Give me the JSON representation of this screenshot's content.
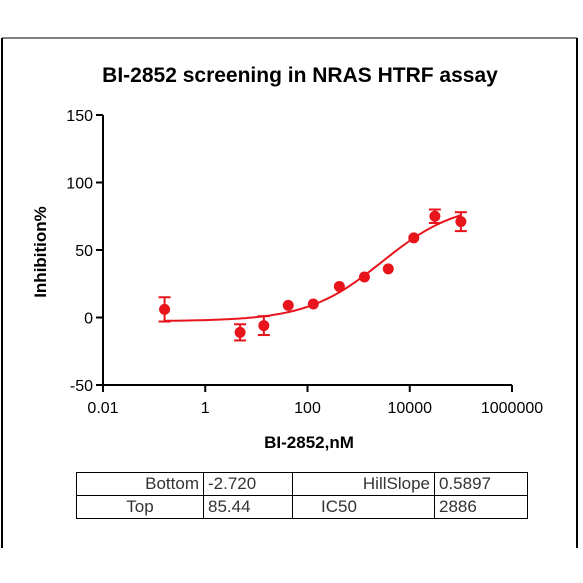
{
  "chart_data": {
    "type": "scatter",
    "title": "BI-2852 screening in NRAS HTRF assay",
    "xlabel": "BI-2852,nM",
    "ylabel": "Inhibition%",
    "xscale": "log",
    "xlim": [
      0.01,
      1000000
    ],
    "ylim": [
      -50,
      150
    ],
    "xticks": [
      0.01,
      1,
      100,
      10000,
      1000000
    ],
    "xtick_labels": [
      "0.01",
      "1",
      "100",
      "10000",
      "1000000"
    ],
    "yticks": [
      -50,
      0,
      50,
      100,
      150
    ],
    "ytick_labels": [
      "-50",
      "0",
      "50",
      "100",
      "150"
    ],
    "grid": false,
    "marker_color": "#e8141b",
    "curve_color": "#e8141b",
    "points": [
      {
        "x": 0.16,
        "y": 6,
        "err": 9
      },
      {
        "x": 4.8,
        "y": -11,
        "err": 6
      },
      {
        "x": 14,
        "y": -6,
        "err": 7
      },
      {
        "x": 42,
        "y": 9,
        "err": 0
      },
      {
        "x": 130,
        "y": 10,
        "err": 0
      },
      {
        "x": 420,
        "y": 23,
        "err": 0
      },
      {
        "x": 1300,
        "y": 30,
        "err": 0
      },
      {
        "x": 3800,
        "y": 36,
        "err": 0
      },
      {
        "x": 12000,
        "y": 59,
        "err": 0
      },
      {
        "x": 31000,
        "y": 75,
        "err": 5
      },
      {
        "x": 100000,
        "y": 71,
        "err": 7
      }
    ],
    "fit": {
      "bottom": -2.72,
      "top": 85.44,
      "hillslope": 0.5897,
      "ic50": 2886
    }
  },
  "params": {
    "bottom_label": "Bottom",
    "bottom_value": "-2.720",
    "hillslope_label": "HillSlope",
    "hillslope_value": "0.5897",
    "top_label": "Top",
    "top_value": "85.44",
    "ic50_label": "IC50",
    "ic50_value": "2886"
  }
}
